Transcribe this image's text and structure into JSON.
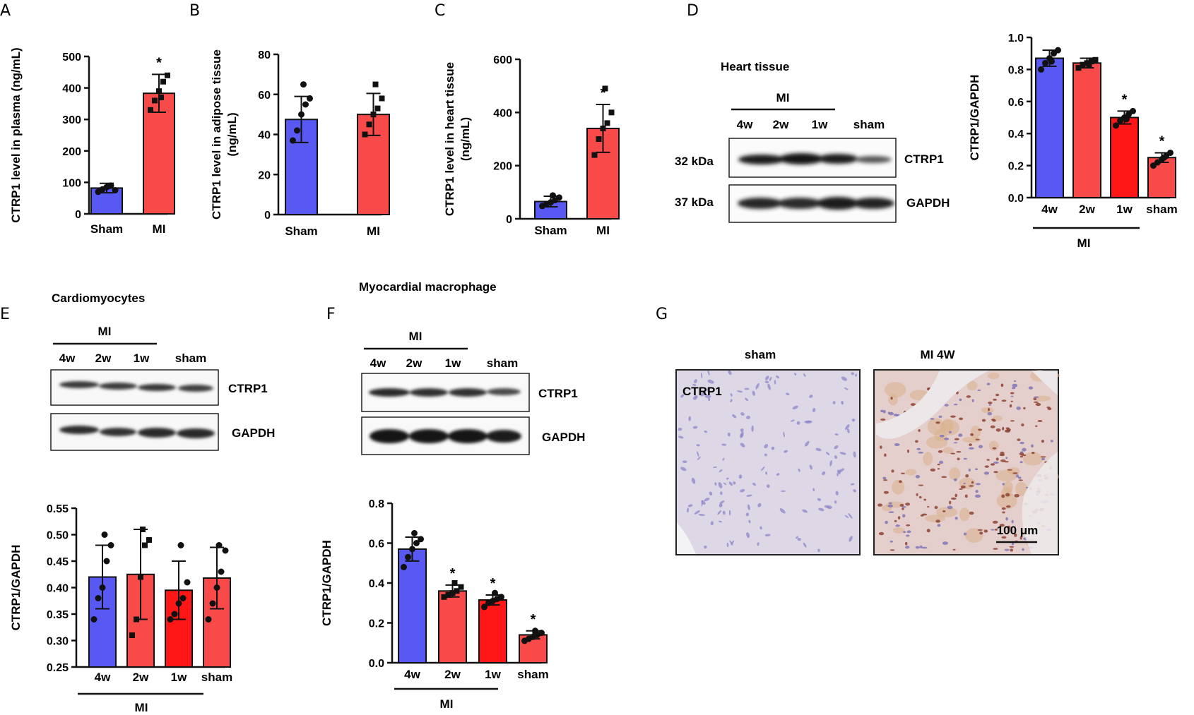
{
  "panels": {
    "A": {
      "label": "A"
    },
    "B": {
      "label": "B"
    },
    "C": {
      "label": "C"
    },
    "D": {
      "label": "D",
      "blot_title": "Heart tissue",
      "group_label": "MI",
      "lanes": [
        "4w",
        "2w",
        "1w",
        "sham"
      ],
      "kda": [
        "32 kDa",
        "37 kDa"
      ],
      "bands": [
        "CTRP1",
        "GAPDH"
      ]
    },
    "E": {
      "label": "E",
      "blot_title": "Cardiomyocytes",
      "group_label": "MI",
      "lanes": [
        "4w",
        "2w",
        "1w",
        "sham"
      ],
      "bands": [
        "CTRP1",
        "GAPDH"
      ]
    },
    "F": {
      "label": "F",
      "blot_title": "Myocardial macrophage",
      "group_label": "MI",
      "lanes": [
        "4w",
        "2w",
        "1w",
        "sham"
      ],
      "bands": [
        "CTRP1",
        "GAPDH"
      ]
    },
    "G": {
      "label": "G",
      "titles": [
        "sham",
        "MI 4W"
      ],
      "stain_label": "CTRP1",
      "scale_label": "100 μm"
    }
  },
  "colors": {
    "blue": "#5858f2",
    "red": "#f94a4a",
    "brightred": "#ff1616",
    "axis": "#111111"
  },
  "chart_data": [
    {
      "id": "A",
      "type": "bar",
      "categories": [
        "Sham",
        "MI"
      ],
      "values": [
        82,
        383
      ],
      "errors": [
        15,
        60
      ],
      "points": [
        [
          70,
          78,
          85,
          90,
          75,
          88
        ],
        [
          330,
          360,
          390,
          420,
          440,
          370
        ]
      ],
      "markers": [
        "circle",
        "square"
      ],
      "colors": [
        "#5858f2",
        "#f94a4a"
      ],
      "significance": [
        "",
        "*"
      ],
      "ylabel": "CTRP1 level in plasma (ng/mL)",
      "ylim": [
        0,
        500
      ],
      "yticks": [
        0,
        100,
        200,
        300,
        400,
        500
      ]
    },
    {
      "id": "B",
      "type": "bar",
      "categories": [
        "Sham",
        "MI"
      ],
      "values": [
        47.5,
        50
      ],
      "errors": [
        11.5,
        10.5
      ],
      "points": [
        [
          37,
          42,
          50,
          55,
          58,
          65
        ],
        [
          40,
          45,
          50,
          53,
          58,
          65
        ]
      ],
      "markers": [
        "circle",
        "square"
      ],
      "colors": [
        "#5858f2",
        "#f94a4a"
      ],
      "significance": [
        "",
        ""
      ],
      "ylabel": "CTRP1 level in adipose tissue (ng/mL)",
      "ylim": [
        0,
        80
      ],
      "yticks": [
        0,
        20,
        40,
        60,
        80
      ]
    },
    {
      "id": "C",
      "type": "bar",
      "categories": [
        "Sham",
        "MI"
      ],
      "values": [
        65,
        340
      ],
      "errors": [
        20,
        90
      ],
      "points": [
        [
          48,
          55,
          62,
          70,
          80,
          88
        ],
        [
          240,
          300,
          340,
          360,
          400,
          490
        ]
      ],
      "markers": [
        "circle",
        "square"
      ],
      "colors": [
        "#5858f2",
        "#f94a4a"
      ],
      "significance": [
        "",
        "*"
      ],
      "ylabel": "CTRP1 level in heart tissue (ng/mL)",
      "ylim": [
        0,
        600
      ],
      "yticks": [
        0,
        200,
        400,
        600
      ]
    },
    {
      "id": "D",
      "type": "bar",
      "categories": [
        "4w",
        "2w",
        "1w",
        "sham"
      ],
      "values": [
        0.87,
        0.84,
        0.5,
        0.25
      ],
      "errors": [
        0.05,
        0.03,
        0.04,
        0.03
      ],
      "points": [
        [
          0.8,
          0.84,
          0.87,
          0.9,
          0.92,
          0.85
        ],
        [
          0.81,
          0.83,
          0.84,
          0.85,
          0.86,
          0.83
        ],
        [
          0.45,
          0.48,
          0.5,
          0.52,
          0.54,
          0.49
        ],
        [
          0.2,
          0.22,
          0.24,
          0.26,
          0.28,
          0.25
        ]
      ],
      "markers": [
        "circle",
        "square",
        "circle",
        "circle"
      ],
      "colors": [
        "#5858f2",
        "#f94a4a",
        "#ff1616",
        "#f94a4a"
      ],
      "significance": [
        "",
        "",
        "*",
        "*"
      ],
      "ylabel": "CTRP1/GAPDH",
      "ylim": [
        0,
        1.0
      ],
      "yticks": [
        0.0,
        0.2,
        0.4,
        0.6,
        0.8,
        1.0
      ],
      "group_label": "MI"
    },
    {
      "id": "E",
      "type": "bar",
      "categories": [
        "4w",
        "2w",
        "1w",
        "sham"
      ],
      "values": [
        0.42,
        0.425,
        0.395,
        0.418
      ],
      "errors": [
        0.06,
        0.085,
        0.055,
        0.058
      ],
      "points": [
        [
          0.34,
          0.38,
          0.4,
          0.45,
          0.48,
          0.5
        ],
        [
          0.31,
          0.34,
          0.42,
          0.48,
          0.49,
          0.51
        ],
        [
          0.34,
          0.35,
          0.37,
          0.38,
          0.41,
          0.48
        ],
        [
          0.34,
          0.37,
          0.4,
          0.43,
          0.47,
          0.48
        ]
      ],
      "markers": [
        "circle",
        "square",
        "circle",
        "circle"
      ],
      "colors": [
        "#5858f2",
        "#f94a4a",
        "#ff1616",
        "#f94a4a"
      ],
      "significance": [
        "",
        "",
        "",
        ""
      ],
      "ylabel": "CTRP1/GAPDH",
      "ylim": [
        0.25,
        0.55
      ],
      "yticks": [
        0.25,
        0.3,
        0.35,
        0.4,
        0.45,
        0.5,
        0.55
      ],
      "group_label": "MI"
    },
    {
      "id": "F",
      "type": "bar",
      "categories": [
        "4w",
        "2w",
        "1w",
        "sham"
      ],
      "values": [
        0.57,
        0.36,
        0.315,
        0.14
      ],
      "errors": [
        0.06,
        0.03,
        0.025,
        0.02
      ],
      "points": [
        [
          0.48,
          0.53,
          0.57,
          0.6,
          0.62,
          0.65
        ],
        [
          0.33,
          0.34,
          0.35,
          0.36,
          0.38,
          0.4
        ],
        [
          0.28,
          0.3,
          0.31,
          0.32,
          0.33,
          0.35
        ],
        [
          0.11,
          0.12,
          0.13,
          0.14,
          0.15,
          0.16
        ]
      ],
      "markers": [
        "circle",
        "square",
        "circle",
        "circle"
      ],
      "colors": [
        "#5858f2",
        "#f94a4a",
        "#ff1616",
        "#f94a4a"
      ],
      "significance": [
        "",
        "*",
        "*",
        "*"
      ],
      "ylabel": "CTRP1/GAPDH",
      "ylim": [
        0,
        0.8
      ],
      "yticks": [
        0.0,
        0.2,
        0.4,
        0.6,
        0.8
      ],
      "group_label": "MI"
    }
  ]
}
